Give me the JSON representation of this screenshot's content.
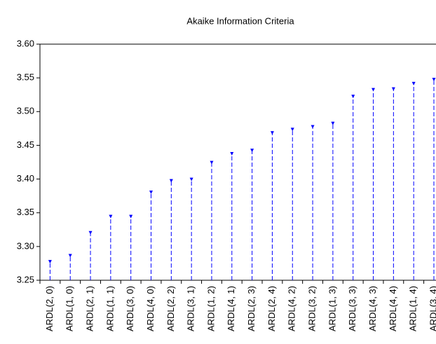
{
  "chart_data": {
    "type": "stem",
    "title": "Akaike Information Criteria",
    "categories": [
      "ARDL(2, 0)",
      "ARDL(1, 0)",
      "ARDL(2, 1)",
      "ARDL(1, 1)",
      "ARDL(3, 0)",
      "ARDL(4, 0)",
      "ARDL(2, 2)",
      "ARDL(3, 1)",
      "ARDL(1, 2)",
      "ARDL(4, 1)",
      "ARDL(2, 3)",
      "ARDL(2, 4)",
      "ARDL(4, 2)",
      "ARDL(3, 2)",
      "ARDL(1, 3)",
      "ARDL(3, 3)",
      "ARDL(4, 3)",
      "ARDL(4, 4)",
      "ARDL(1, 4)",
      "ARDL(3, 4)"
    ],
    "values": [
      3.28,
      3.289,
      3.323,
      3.347,
      3.347,
      3.383,
      3.4,
      3.402,
      3.427,
      3.44,
      3.445,
      3.471,
      3.476,
      3.48,
      3.485,
      3.525,
      3.535,
      3.536,
      3.544,
      3.55
    ],
    "color": "#0000ff",
    "ylim": [
      3.25,
      3.6
    ],
    "yticks": [
      {
        "value": 3.25,
        "label": "3.25"
      },
      {
        "value": 3.3,
        "label": "3.30"
      },
      {
        "value": 3.35,
        "label": "3.35"
      },
      {
        "value": 3.4,
        "label": "3.40"
      },
      {
        "value": 3.45,
        "label": "3.45"
      },
      {
        "value": 3.5,
        "label": "3.50"
      },
      {
        "value": 3.55,
        "label": "3.55"
      },
      {
        "value": 3.6,
        "label": "3.60"
      }
    ],
    "grid": false
  }
}
